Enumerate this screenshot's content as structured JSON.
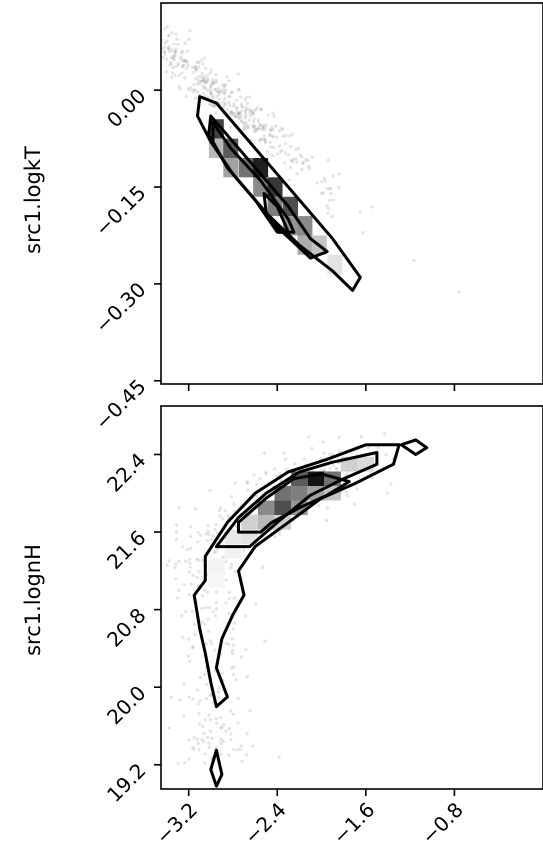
{
  "chart_data": [
    {
      "type": "scatter",
      "subtype": "2d-histogram-with-contours",
      "panel": "top",
      "xlabel": "",
      "ylabel": "src1.logkT",
      "xlim": [
        -3.45,
        -0.0
      ],
      "ylim": [
        -0.455,
        0.135
      ],
      "x_ticks": [],
      "y_ticks": [
        "0.00",
        "−0.15",
        "−0.30",
        "−0.45"
      ],
      "y_tick_values": [
        0.0,
        -0.15,
        -0.3,
        -0.45
      ],
      "grid": false,
      "histogram_cells": [
        {
          "x": -2.95,
          "y": -0.06,
          "v": 0.8
        },
        {
          "x": -2.95,
          "y": -0.09,
          "v": 0.3
        },
        {
          "x": -2.82,
          "y": -0.09,
          "v": 0.7
        },
        {
          "x": -2.82,
          "y": -0.12,
          "v": 0.4
        },
        {
          "x": -2.68,
          "y": -0.12,
          "v": 0.6
        },
        {
          "x": -2.55,
          "y": -0.12,
          "v": 0.95
        },
        {
          "x": -2.55,
          "y": -0.15,
          "v": 0.5
        },
        {
          "x": -2.42,
          "y": -0.15,
          "v": 0.85
        },
        {
          "x": -2.42,
          "y": -0.18,
          "v": 0.55
        },
        {
          "x": -2.28,
          "y": -0.18,
          "v": 0.75
        },
        {
          "x": -2.28,
          "y": -0.21,
          "v": 0.45
        },
        {
          "x": -2.15,
          "y": -0.21,
          "v": 0.5
        },
        {
          "x": -2.15,
          "y": -0.24,
          "v": 0.35
        },
        {
          "x": -2.02,
          "y": -0.24,
          "v": 0.25
        },
        {
          "x": -1.88,
          "y": -0.27,
          "v": 0.12
        }
      ],
      "contours": [
        {
          "level": "outer",
          "points": [
            [
              -3.1,
              -0.01
            ],
            [
              -2.95,
              -0.02
            ],
            [
              -2.7,
              -0.07
            ],
            [
              -2.45,
              -0.12
            ],
            [
              -2.15,
              -0.18
            ],
            [
              -1.9,
              -0.23
            ],
            [
              -1.65,
              -0.29
            ],
            [
              -1.72,
              -0.31
            ],
            [
              -1.9,
              -0.28
            ],
            [
              -2.2,
              -0.24
            ],
            [
              -2.5,
              -0.19
            ],
            [
              -2.8,
              -0.13
            ],
            [
              -3.0,
              -0.08
            ],
            [
              -3.12,
              -0.04
            ],
            [
              -3.1,
              -0.01
            ]
          ]
        },
        {
          "level": "middle",
          "points": [
            [
              -3.0,
              -0.04
            ],
            [
              -2.8,
              -0.08
            ],
            [
              -2.55,
              -0.13
            ],
            [
              -2.3,
              -0.18
            ],
            [
              -2.1,
              -0.23
            ],
            [
              -1.95,
              -0.25
            ],
            [
              -2.1,
              -0.26
            ],
            [
              -2.35,
              -0.22
            ],
            [
              -2.6,
              -0.17
            ],
            [
              -2.85,
              -0.12
            ],
            [
              -3.02,
              -0.07
            ],
            [
              -3.0,
              -0.04
            ]
          ]
        },
        {
          "level": "inner",
          "points": [
            [
              -2.98,
              -0.05
            ],
            [
              -2.82,
              -0.09
            ],
            [
              -2.55,
              -0.14
            ],
            [
              -2.3,
              -0.2
            ],
            [
              -2.25,
              -0.22
            ],
            [
              -2.4,
              -0.22
            ],
            [
              -2.6,
              -0.17
            ],
            [
              -2.85,
              -0.12
            ],
            [
              -2.98,
              -0.08
            ],
            [
              -2.98,
              -0.05
            ]
          ]
        },
        {
          "level": "core",
          "points": [
            [
              -2.52,
              -0.16
            ],
            [
              -2.4,
              -0.18
            ],
            [
              -2.3,
              -0.22
            ],
            [
              -2.38,
              -0.22
            ],
            [
              -2.5,
              -0.19
            ],
            [
              -2.52,
              -0.16
            ]
          ]
        }
      ]
    },
    {
      "type": "scatter",
      "subtype": "2d-histogram-with-contours",
      "panel": "bottom",
      "xlabel": "",
      "ylabel": "src1.lognH",
      "xlim": [
        -3.45,
        -0.0
      ],
      "ylim": [
        18.95,
        22.9
      ],
      "x_ticks": [
        "−3.2",
        "−2.4",
        "−1.6",
        "−0.8"
      ],
      "x_tick_values": [
        -3.2,
        -2.4,
        -1.6,
        -0.8
      ],
      "y_ticks": [
        "22.4",
        "21.6",
        "20.8",
        "20.0",
        "19.2"
      ],
      "y_tick_values": [
        22.4,
        21.6,
        20.8,
        20.0,
        19.2
      ],
      "grid": false,
      "histogram_cells": [
        {
          "x": -2.2,
          "y": 22.15,
          "v": 0.7
        },
        {
          "x": -2.05,
          "y": 22.15,
          "v": 1.0
        },
        {
          "x": -1.9,
          "y": 22.15,
          "v": 0.6
        },
        {
          "x": -1.75,
          "y": 22.3,
          "v": 0.2
        },
        {
          "x": -1.6,
          "y": 22.3,
          "v": 0.15
        },
        {
          "x": -2.35,
          "y": 22.0,
          "v": 0.6
        },
        {
          "x": -2.2,
          "y": 22.0,
          "v": 0.55
        },
        {
          "x": -2.05,
          "y": 22.0,
          "v": 0.4
        },
        {
          "x": -1.9,
          "y": 22.0,
          "v": 0.25
        },
        {
          "x": -2.5,
          "y": 21.85,
          "v": 0.5
        },
        {
          "x": -2.35,
          "y": 21.85,
          "v": 0.75
        },
        {
          "x": -2.2,
          "y": 21.85,
          "v": 0.45
        },
        {
          "x": -2.65,
          "y": 21.7,
          "v": 0.2
        },
        {
          "x": -2.5,
          "y": 21.7,
          "v": 0.3
        },
        {
          "x": -2.35,
          "y": 21.7,
          "v": 0.2
        },
        {
          "x": -2.8,
          "y": 21.55,
          "v": 0.1
        },
        {
          "x": -2.65,
          "y": 21.55,
          "v": 0.12
        },
        {
          "x": -2.8,
          "y": 21.4,
          "v": 0.06
        },
        {
          "x": -2.95,
          "y": 21.25,
          "v": 0.05
        },
        {
          "x": -2.95,
          "y": 21.1,
          "v": 0.04
        }
      ],
      "contours": [
        {
          "level": "outer",
          "points": [
            [
              -3.05,
              21.35
            ],
            [
              -2.85,
              21.7
            ],
            [
              -2.6,
              22.0
            ],
            [
              -2.3,
              22.22
            ],
            [
              -1.95,
              22.35
            ],
            [
              -1.6,
              22.5
            ],
            [
              -1.3,
              22.5
            ],
            [
              -1.35,
              22.3
            ],
            [
              -1.7,
              22.1
            ],
            [
              -2.0,
              21.95
            ],
            [
              -2.3,
              21.7
            ],
            [
              -2.6,
              21.45
            ],
            [
              -2.75,
              21.2
            ],
            [
              -2.7,
              20.95
            ],
            [
              -2.8,
              20.75
            ],
            [
              -2.9,
              20.5
            ],
            [
              -2.95,
              20.2
            ],
            [
              -2.85,
              19.9
            ],
            [
              -2.95,
              19.8
            ],
            [
              -3.0,
              20.05
            ],
            [
              -3.05,
              20.35
            ],
            [
              -3.1,
              20.6
            ],
            [
              -3.15,
              20.95
            ],
            [
              -3.05,
              21.1
            ],
            [
              -3.05,
              21.35
            ]
          ]
        },
        {
          "level": "middle",
          "points": [
            [
              -2.95,
              21.45
            ],
            [
              -2.75,
              21.75
            ],
            [
              -2.5,
              22.0
            ],
            [
              -2.2,
              22.22
            ],
            [
              -1.9,
              22.32
            ],
            [
              -1.5,
              22.42
            ],
            [
              -1.5,
              22.3
            ],
            [
              -1.8,
              22.15
            ],
            [
              -2.1,
              21.98
            ],
            [
              -2.4,
              21.7
            ],
            [
              -2.65,
              21.45
            ],
            [
              -2.95,
              21.45
            ]
          ]
        },
        {
          "level": "inner",
          "points": [
            [
              -2.75,
              21.7
            ],
            [
              -2.5,
              21.95
            ],
            [
              -2.25,
              22.15
            ],
            [
              -2.0,
              22.2
            ],
            [
              -1.75,
              22.12
            ],
            [
              -1.95,
              21.98
            ],
            [
              -2.2,
              21.85
            ],
            [
              -2.45,
              21.7
            ],
            [
              -2.55,
              21.6
            ],
            [
              -2.75,
              21.6
            ],
            [
              -2.75,
              21.7
            ]
          ]
        },
        {
          "level": "island-a",
          "points": [
            [
              -1.28,
              22.5
            ],
            [
              -1.15,
              22.55
            ],
            [
              -1.05,
              22.47
            ],
            [
              -1.15,
              22.4
            ],
            [
              -1.28,
              22.5
            ]
          ]
        },
        {
          "level": "island-b",
          "points": [
            [
              -3.0,
              19.15
            ],
            [
              -2.95,
              19.35
            ],
            [
              -2.9,
              19.1
            ],
            [
              -2.95,
              18.98
            ],
            [
              -3.0,
              19.15
            ]
          ]
        }
      ]
    }
  ]
}
